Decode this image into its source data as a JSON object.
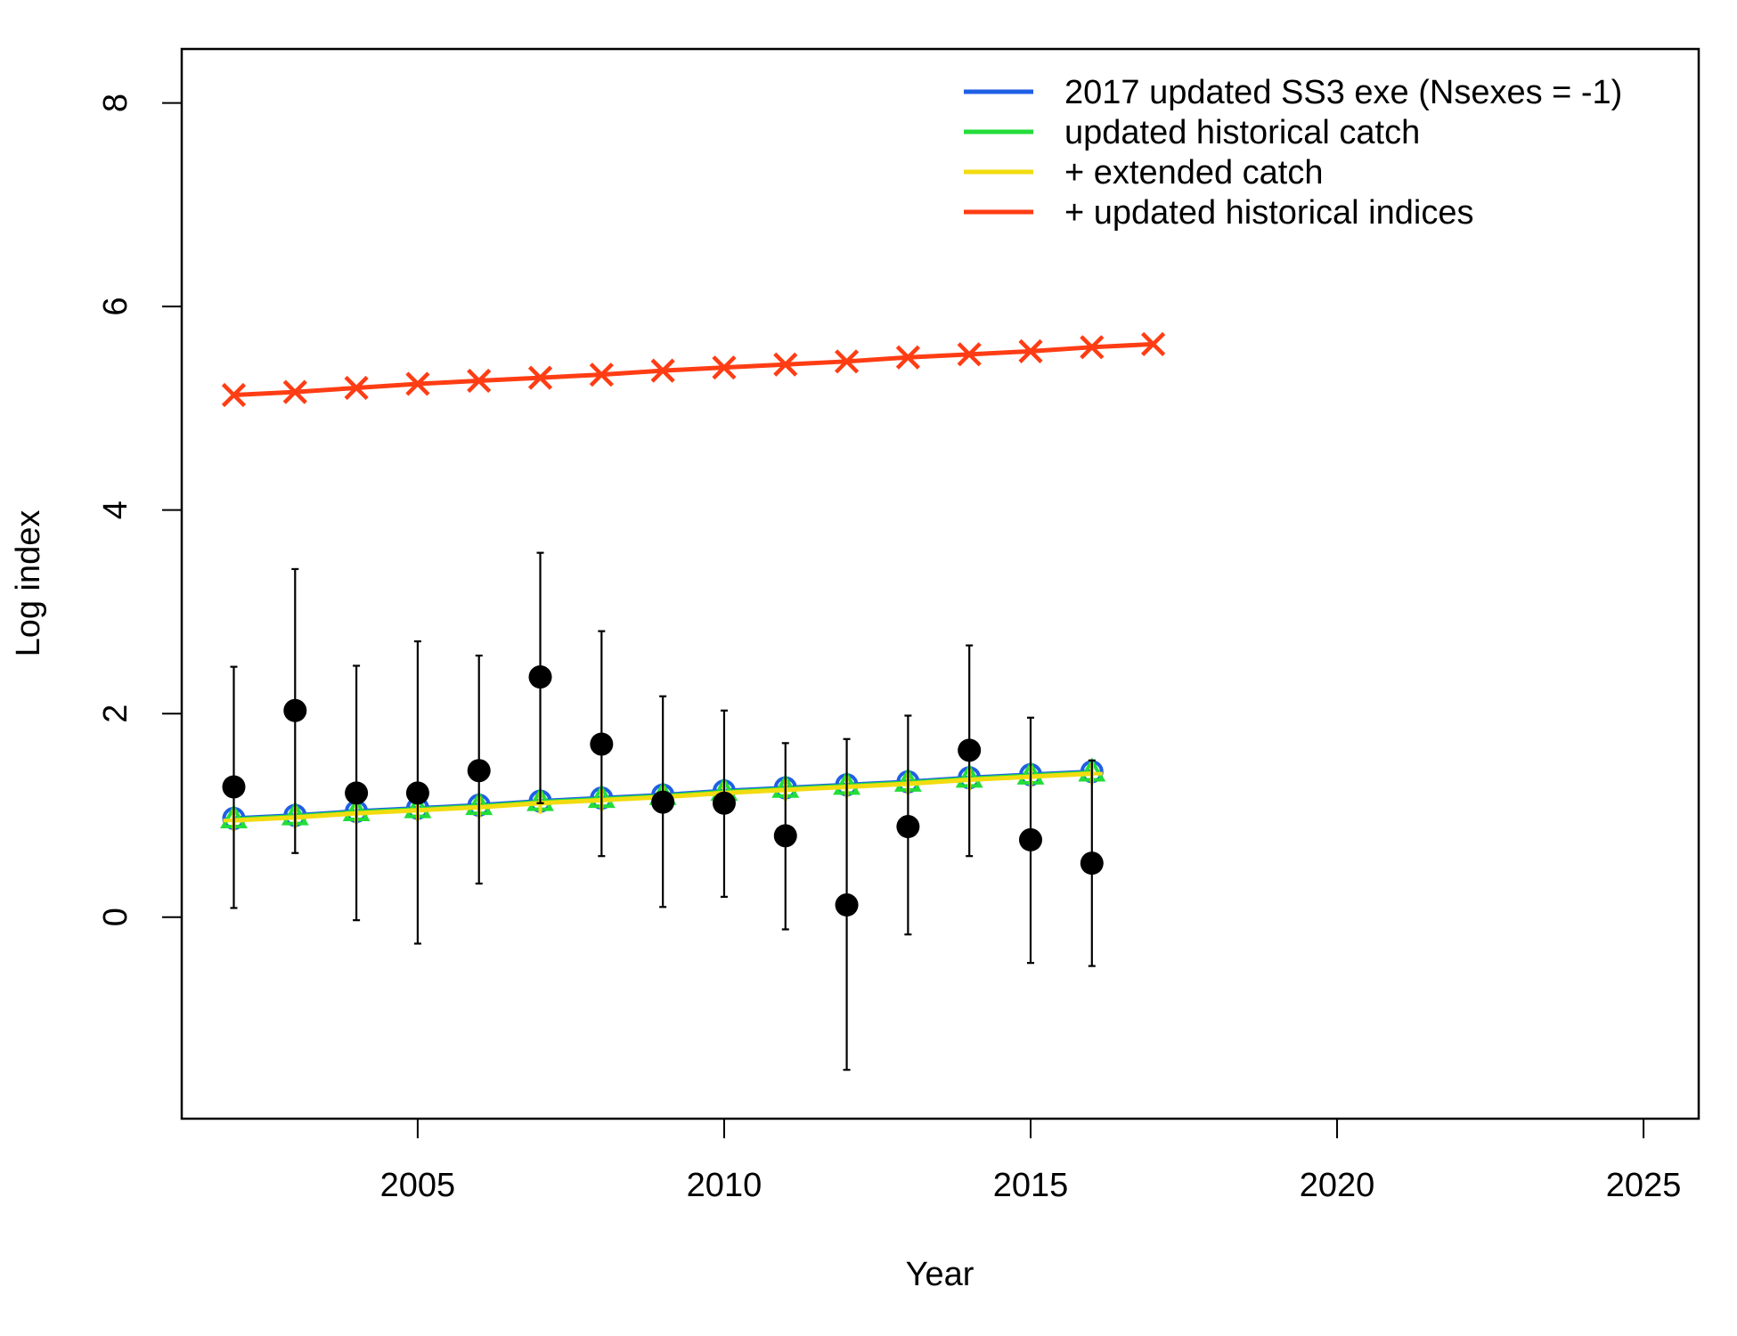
{
  "chart_data": {
    "type": "line",
    "title": "",
    "xlabel": "Year",
    "ylabel": "Log index",
    "xlim": [
      2001.15,
      2025.9
    ],
    "ylim": [
      -1.98,
      8.53
    ],
    "x_ticks": [
      2005,
      2010,
      2015,
      2020,
      2025
    ],
    "y_ticks": [
      0,
      2,
      4,
      6,
      8
    ],
    "grid": false,
    "legend_position": "top-right",
    "observed": {
      "years": [
        2002,
        2003,
        2004,
        2005,
        2006,
        2007,
        2008,
        2009,
        2010,
        2011,
        2012,
        2013,
        2014,
        2015,
        2016
      ],
      "values": [
        1.28,
        2.03,
        1.22,
        1.22,
        1.44,
        2.36,
        1.7,
        1.13,
        1.12,
        0.8,
        0.12,
        0.89,
        1.64,
        0.76,
        0.53
      ],
      "lower": [
        0.09,
        0.63,
        -0.03,
        -0.26,
        0.33,
        1.12,
        0.6,
        0.1,
        0.2,
        -0.12,
        -1.5,
        -0.17,
        0.6,
        -0.45,
        -0.48
      ],
      "upper": [
        2.46,
        3.42,
        2.47,
        2.71,
        2.57,
        3.58,
        2.81,
        2.17,
        2.03,
        1.71,
        1.75,
        1.98,
        2.67,
        1.96,
        1.54
      ]
    },
    "series": [
      {
        "name": "2017 updated SS3 exe (Nsexes = -1)",
        "color": "#1f5fe6",
        "marker": "circle",
        "x": [
          2002,
          2003,
          2004,
          2005,
          2006,
          2007,
          2008,
          2009,
          2010,
          2011,
          2012,
          2013,
          2014,
          2015,
          2016
        ],
        "values": [
          0.97,
          1.0,
          1.04,
          1.07,
          1.1,
          1.14,
          1.17,
          1.2,
          1.24,
          1.27,
          1.3,
          1.33,
          1.37,
          1.4,
          1.43
        ]
      },
      {
        "name": "updated historical catch",
        "color": "#22dd3a",
        "marker": "triangle",
        "x": [
          2002,
          2003,
          2004,
          2005,
          2006,
          2007,
          2008,
          2009,
          2010,
          2011,
          2012,
          2013,
          2014,
          2015,
          2016
        ],
        "values": [
          0.96,
          0.99,
          1.03,
          1.06,
          1.09,
          1.13,
          1.16,
          1.19,
          1.23,
          1.26,
          1.29,
          1.32,
          1.36,
          1.39,
          1.42
        ]
      },
      {
        "name": "+ extended catch",
        "color": "#f2dc10",
        "marker": "plus",
        "x": [
          2002,
          2003,
          2004,
          2005,
          2006,
          2007,
          2008,
          2009,
          2010,
          2011,
          2012,
          2013,
          2014,
          2015,
          2016
        ],
        "values": [
          0.95,
          0.98,
          1.02,
          1.05,
          1.08,
          1.12,
          1.15,
          1.18,
          1.22,
          1.25,
          1.28,
          1.31,
          1.35,
          1.38,
          1.41
        ]
      },
      {
        "name": "+ updated historical indices",
        "color": "#ff3d14",
        "marker": "cross",
        "x": [
          2002,
          2003,
          2004,
          2005,
          2006,
          2007,
          2008,
          2009,
          2010,
          2011,
          2012,
          2013,
          2014,
          2015,
          2016,
          2017
        ],
        "values": [
          5.13,
          5.16,
          5.2,
          5.24,
          5.27,
          5.3,
          5.33,
          5.37,
          5.4,
          5.43,
          5.46,
          5.5,
          5.53,
          5.56,
          5.6,
          5.63
        ]
      }
    ]
  }
}
